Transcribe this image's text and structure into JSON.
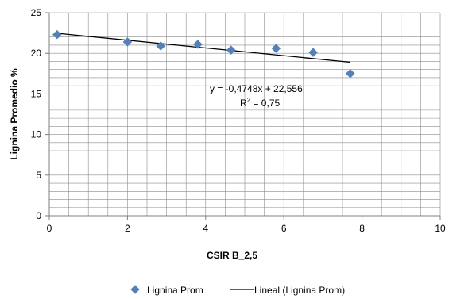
{
  "chart_data": {
    "type": "scatter",
    "xlabel": "CSIR B_2,5",
    "ylabel": "Lignina Promedio %",
    "xlim": [
      0,
      10
    ],
    "ylim": [
      0,
      25
    ],
    "x_ticks": [
      0,
      2,
      4,
      6,
      8,
      10
    ],
    "y_ticks": [
      0,
      5,
      10,
      15,
      20,
      25
    ],
    "grid": true,
    "legend_position": "bottom",
    "series": [
      {
        "name": "Lignina Prom",
        "marker": "diamond",
        "color": "#4f81bd",
        "x": [
          0.2,
          2.0,
          2.85,
          3.8,
          4.65,
          5.8,
          6.75,
          7.7
        ],
        "y": [
          22.3,
          21.4,
          20.9,
          21.1,
          20.4,
          20.6,
          20.1,
          17.5
        ]
      },
      {
        "name": "Lineal (Lignina Prom)",
        "type": "line",
        "color": "#000000",
        "x": [
          0.2,
          7.7
        ],
        "y": [
          22.46,
          18.9
        ]
      }
    ],
    "annotations": {
      "equation": "y = -0,4748x + 22,556",
      "r2_prefix": "R",
      "r2_sup": "2",
      "r2_suffix": " = 0,75"
    }
  }
}
